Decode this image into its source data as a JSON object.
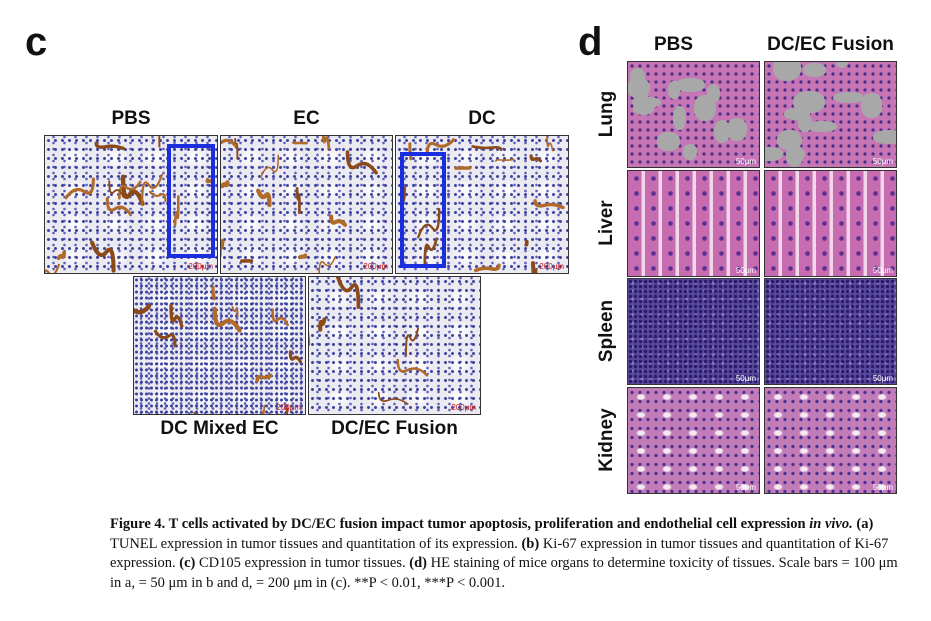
{
  "panel_c": {
    "label": "c",
    "top_row": [
      "PBS",
      "EC",
      "DC"
    ],
    "bottom_row": [
      "DC Mixed EC",
      "DC/EC Fusion"
    ],
    "scale_bar": "200μm"
  },
  "panel_d": {
    "label": "d",
    "columns": [
      "PBS",
      "DC/EC Fusion"
    ],
    "rows": [
      "Lung",
      "Liver",
      "Spleen",
      "Kidney"
    ],
    "scale_bar": "50μm"
  },
  "caption": {
    "heading": "Figure 4.  T cells activated by DC/EC fusion impact tumor apoptosis, proliferation and endothelial cell expression",
    "heading_italic": "in vivo.",
    "parts": [
      {
        "label": "(a)",
        "text": "TUNEL expression in tumor tissues and quantitation of its expression."
      },
      {
        "label": "(b)",
        "text": "Ki-67 expression in tumor tissues and quantitation of Ki-67 expression."
      },
      {
        "label": "(c)",
        "text": "CD105 expression in tumor tissues."
      },
      {
        "label": "(d)",
        "text": "HE staining of mice organs to determine toxicity of tissues. Scale bars = 100 μm in a, = 50 μm in b and d, = 200 μm in (c)."
      }
    ],
    "stats": "**P < 0.01, ***P < 0.001."
  }
}
